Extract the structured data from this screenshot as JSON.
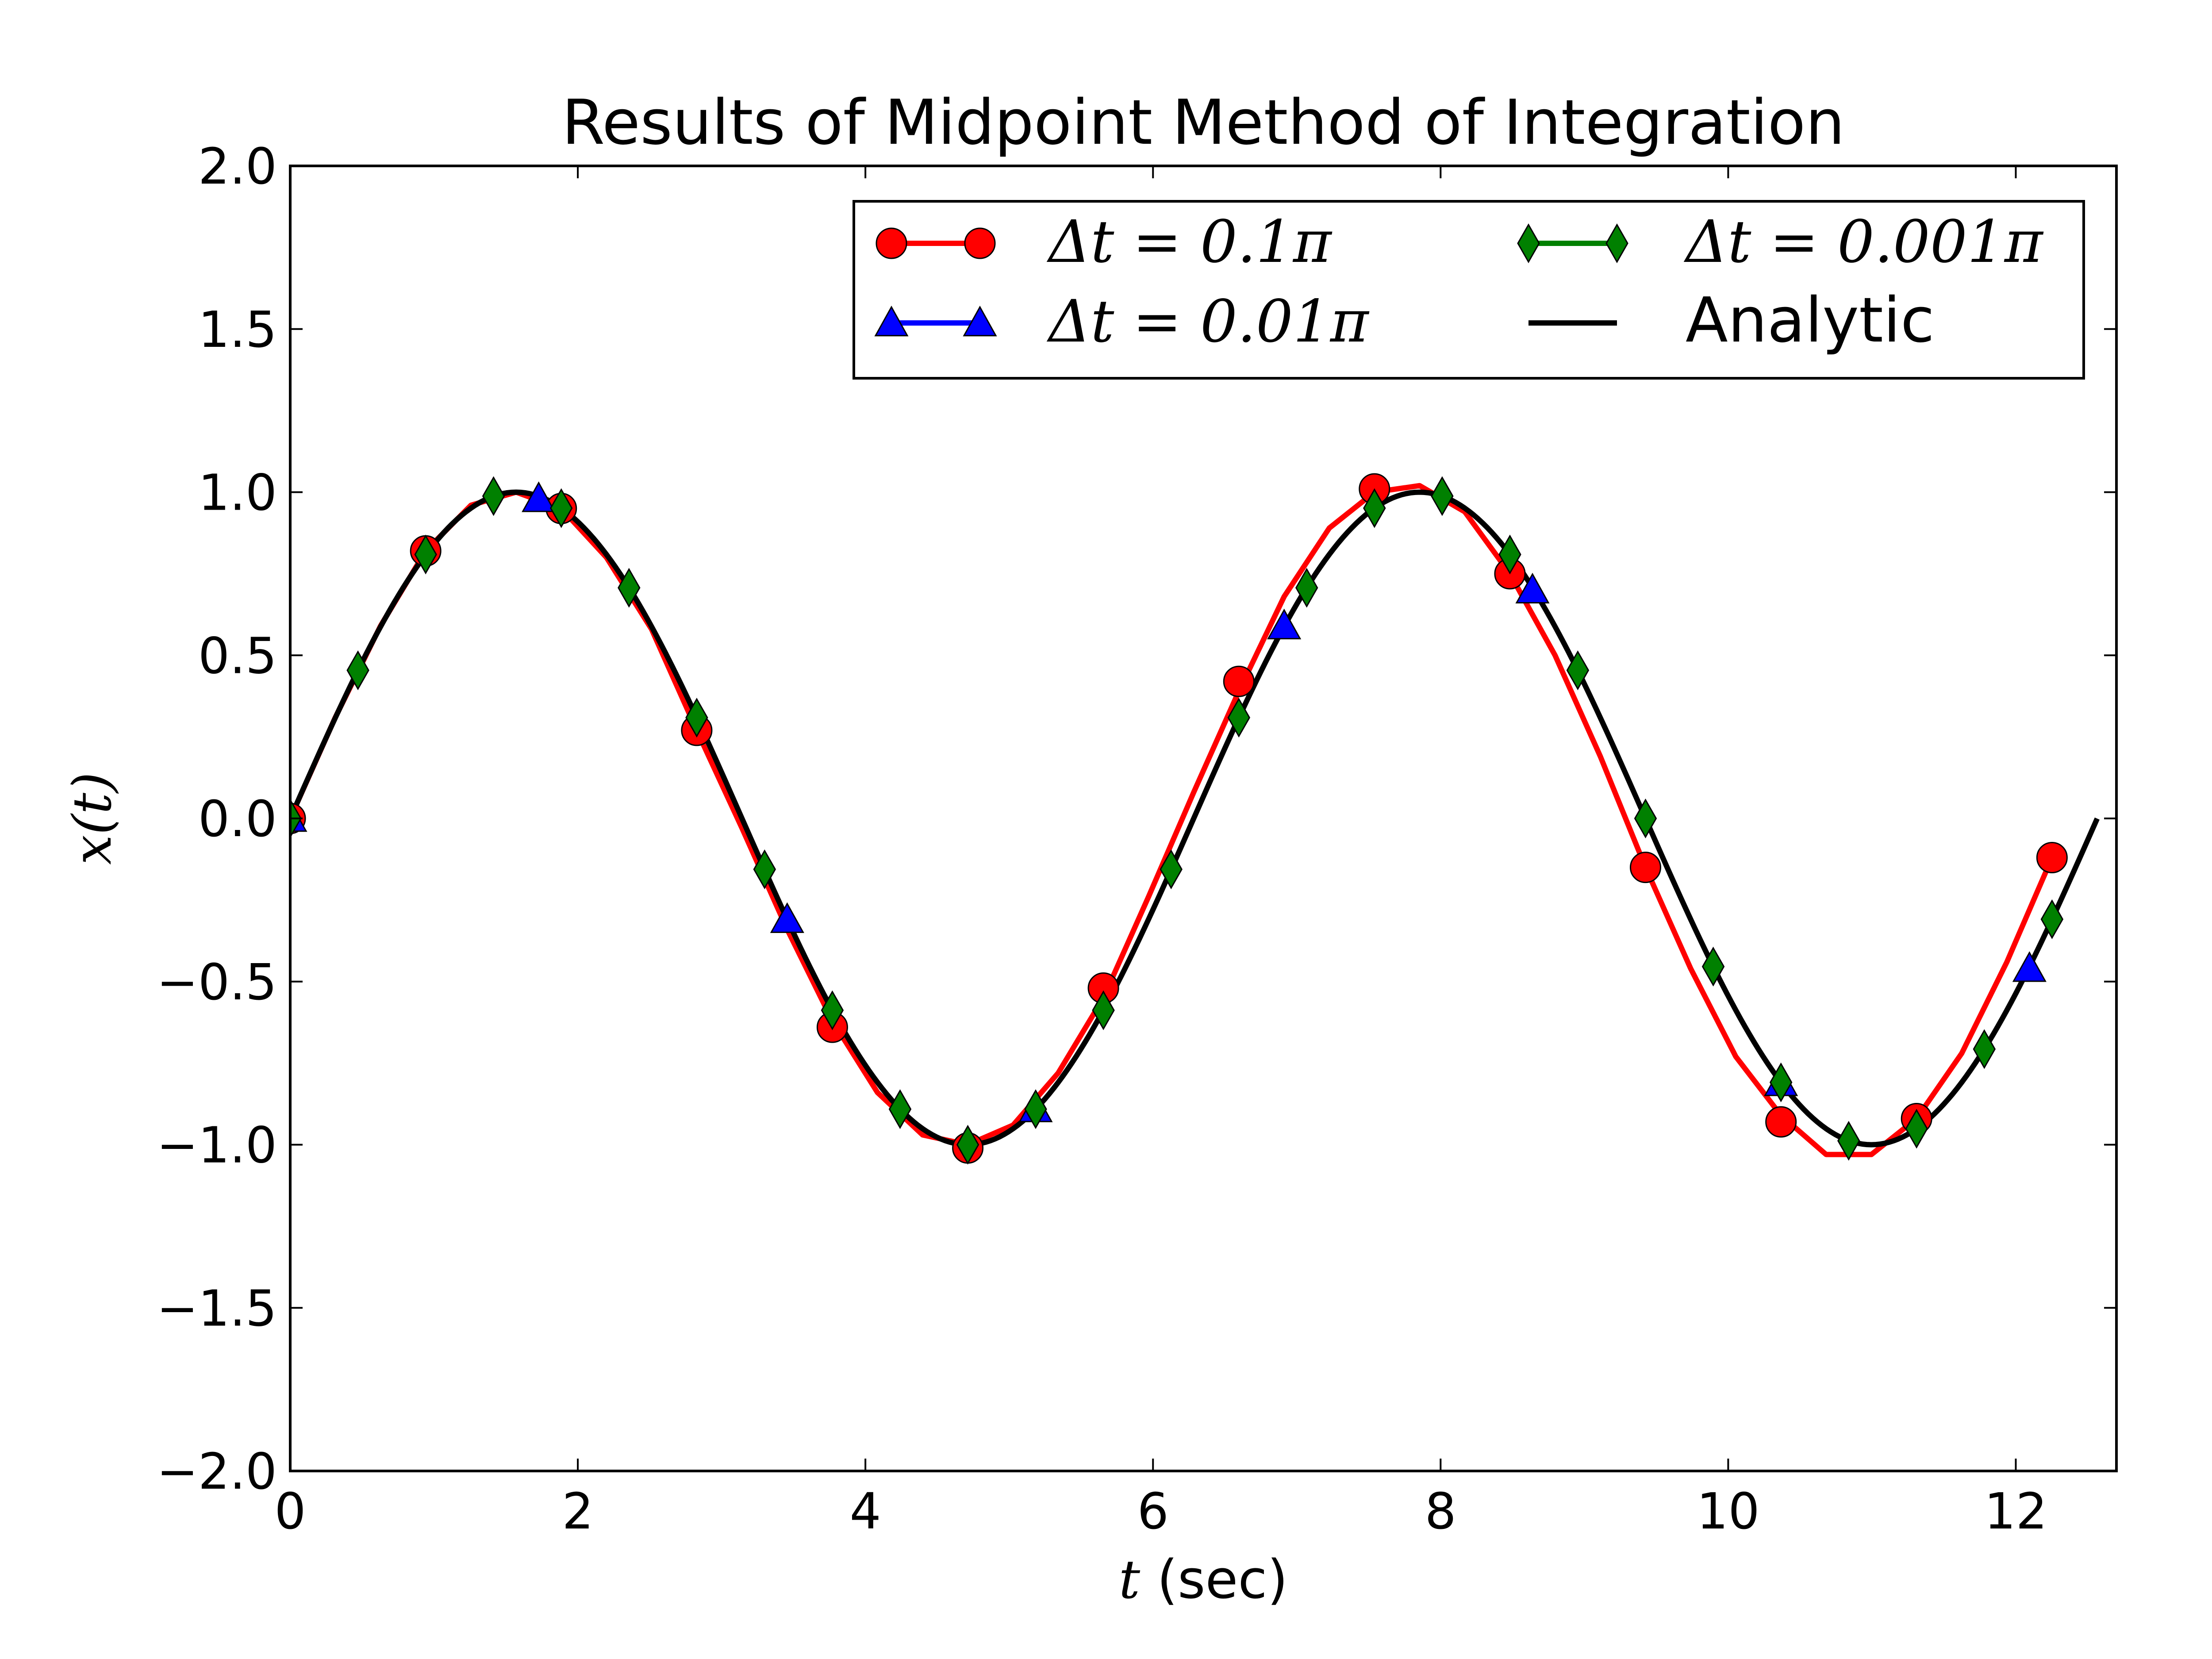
{
  "chart_data": {
    "type": "line",
    "title": "Results of Midpoint Method of Integration",
    "xlabel": {
      "var": "t",
      "unit": "(sec)"
    },
    "ylabel": "x(t)",
    "xlim": [
      0,
      12.7
    ],
    "ylim": [
      -2.0,
      2.0
    ],
    "xticks": [
      0,
      2,
      4,
      6,
      8,
      10,
      12
    ],
    "yticks": [
      2.0,
      1.5,
      1.0,
      0.5,
      0.0,
      -0.5,
      -1.0,
      -1.5,
      -2.0
    ],
    "xtick_labels": [
      "0",
      "2",
      "4",
      "6",
      "8",
      "10",
      "12"
    ],
    "ytick_labels": [
      "2.0",
      "1.5",
      "1.0",
      "0.5",
      "0.0",
      "−0.5",
      "−1.0",
      "−1.5",
      "−2.0"
    ],
    "grid": false,
    "legend_position": "top-right",
    "series": [
      {
        "name": "Δt = 0.1π",
        "color": "#ff0000",
        "marker": "circle",
        "line_x": [
          0,
          0.314,
          0.628,
          0.942,
          1.257,
          1.571,
          1.885,
          2.199,
          2.513,
          2.827,
          3.142,
          3.456,
          3.77,
          4.084,
          4.398,
          4.712,
          5.027,
          5.341,
          5.655,
          5.969,
          6.283,
          6.597,
          6.912,
          7.226,
          7.54,
          7.854,
          8.168,
          8.482,
          8.796,
          9.111,
          9.425,
          9.739,
          10.053,
          10.367,
          10.681,
          10.996,
          11.31,
          11.624,
          11.938,
          12.252
        ],
        "line_y": [
          0.0,
          0.31,
          0.59,
          0.82,
          0.96,
          1.0,
          0.95,
          0.8,
          0.58,
          0.27,
          -0.03,
          -0.34,
          -0.62,
          -0.84,
          -0.97,
          -1.0,
          -0.94,
          -0.78,
          -0.55,
          -0.24,
          0.08,
          0.39,
          0.68,
          0.89,
          1.0,
          1.02,
          0.94,
          0.75,
          0.5,
          0.19,
          -0.15,
          -0.46,
          -0.73,
          -0.91,
          -1.03,
          -1.03,
          -0.92,
          -0.72,
          -0.44,
          -0.12
        ],
        "marker_x": [
          0,
          0.942,
          1.885,
          2.827,
          3.77,
          4.712,
          5.655,
          6.597,
          7.54,
          8.482,
          9.425,
          10.367,
          11.31,
          12.252
        ],
        "marker_y": [
          0.0,
          0.82,
          0.95,
          0.27,
          -0.64,
          -1.01,
          -0.52,
          0.42,
          1.01,
          0.75,
          -0.15,
          -0.93,
          -0.92,
          -0.12
        ]
      },
      {
        "name": "Δt = 0.01π",
        "color": "#0000ff",
        "marker": "triangle",
        "marker_x": [
          0,
          1.728,
          3.456,
          5.184,
          6.912,
          8.639,
          10.367,
          12.095
        ],
        "marker_y": [
          0.0,
          0.98,
          -0.31,
          -0.89,
          0.59,
          0.7,
          -0.81,
          -0.46
        ]
      },
      {
        "name": "Δt = 0.001π",
        "color": "#008000",
        "marker": "diamond",
        "marker_x": [
          0,
          0.471,
          0.942,
          1.414,
          1.885,
          2.356,
          2.827,
          3.299,
          3.77,
          4.241,
          4.712,
          5.184,
          5.655,
          6.126,
          6.597,
          7.069,
          7.54,
          8.011,
          8.482,
          8.954,
          9.425,
          9.896,
          10.367,
          10.838,
          11.31,
          11.781,
          12.252
        ],
        "marker_y": [
          0.0,
          0.454,
          0.809,
          0.988,
          0.951,
          0.707,
          0.309,
          -0.156,
          -0.588,
          -0.891,
          -1.0,
          -0.891,
          -0.588,
          -0.156,
          0.309,
          0.707,
          0.951,
          0.988,
          0.809,
          0.454,
          0.0,
          -0.454,
          -0.809,
          -0.988,
          -0.951,
          -0.707,
          -0.309
        ]
      },
      {
        "name": "Analytic",
        "color": "#000000",
        "marker": "none",
        "function": "sin(t)",
        "x_range": [
          0,
          12.566
        ]
      }
    ]
  }
}
